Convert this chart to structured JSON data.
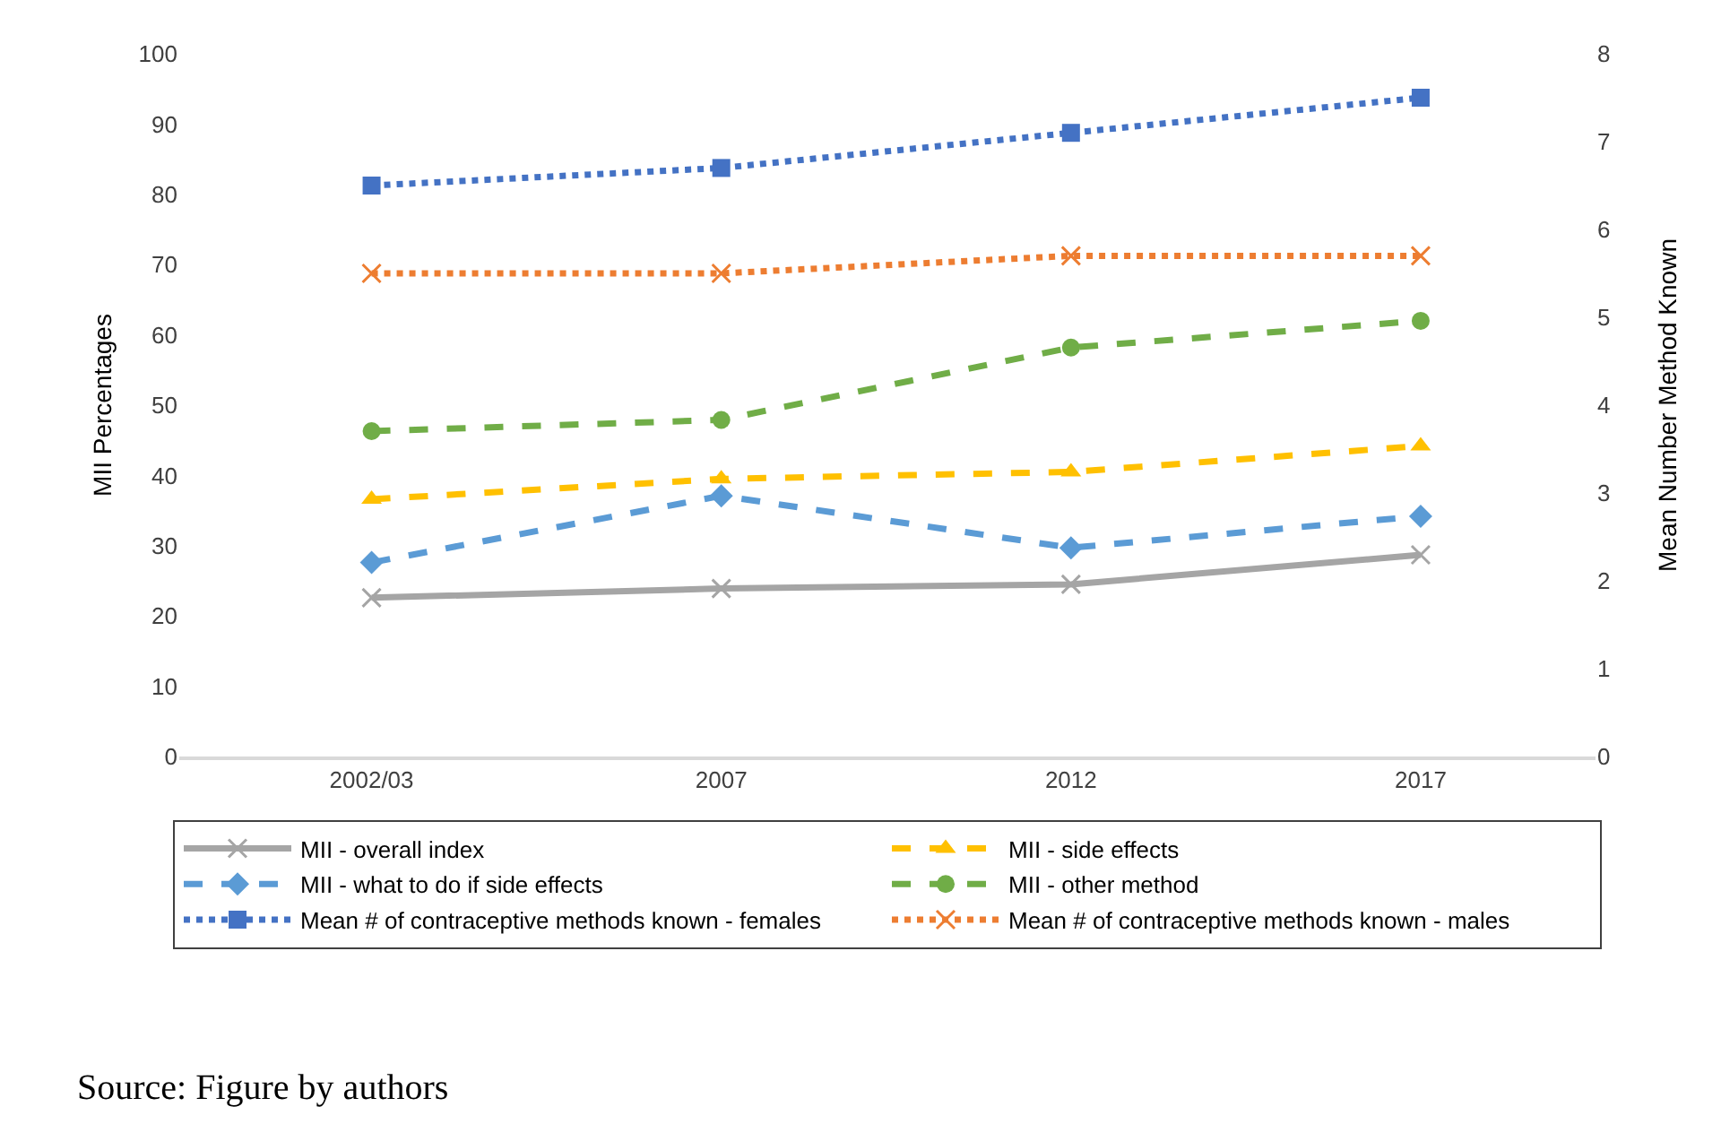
{
  "chart_data": {
    "type": "line",
    "categories": [
      "2002/03",
      "2007",
      "2012",
      "2017"
    ],
    "ylabel": "MII Percentages",
    "y2label": "Mean Number Method Known",
    "ylim": [
      0,
      100
    ],
    "yticks": [
      0,
      10,
      20,
      30,
      40,
      50,
      60,
      70,
      80,
      90,
      100
    ],
    "y2lim": [
      0,
      8
    ],
    "y2ticks": [
      0,
      1,
      2,
      3,
      4,
      5,
      6,
      7,
      8
    ],
    "legend": "bottom",
    "annotations": [
      "Source: Figure by authors"
    ],
    "series": [
      {
        "name": "MII - overall index",
        "color": "#a5a5a5",
        "marker": "cross",
        "line_style": "solid",
        "values": [
          22.6,
          23.9,
          24.5,
          28.7
        ]
      },
      {
        "name": "MII - side effects",
        "color": "#ffc000",
        "marker": "triangle",
        "line_style": "dashed",
        "values": [
          36.6,
          39.5,
          40.5,
          44.2
        ]
      },
      {
        "name": "MII - what to do if side effects",
        "color": "#5b9bd5",
        "marker": "diamond",
        "line_style": "dashed",
        "values": [
          27.6,
          37.1,
          29.7,
          34.2
        ]
      },
      {
        "name": "MII - other method",
        "color": "#70ad47",
        "marker": "circle",
        "line_style": "dashed",
        "values": [
          46.3,
          47.9,
          58.2,
          62.0
        ]
      },
      {
        "name": "Mean # of contraceptive methods known - females",
        "color": "#4472c4",
        "marker": "square",
        "line_style": "dotted",
        "axis": "y2",
        "values": [
          6.5,
          6.7,
          7.1,
          7.5
        ]
      },
      {
        "name": "Mean # of contraceptive methods known - males",
        "color": "#ed7d31",
        "marker": "cross",
        "line_style": "dotted",
        "axis": "y2",
        "values": [
          5.5,
          5.5,
          5.7,
          5.7
        ]
      }
    ]
  }
}
